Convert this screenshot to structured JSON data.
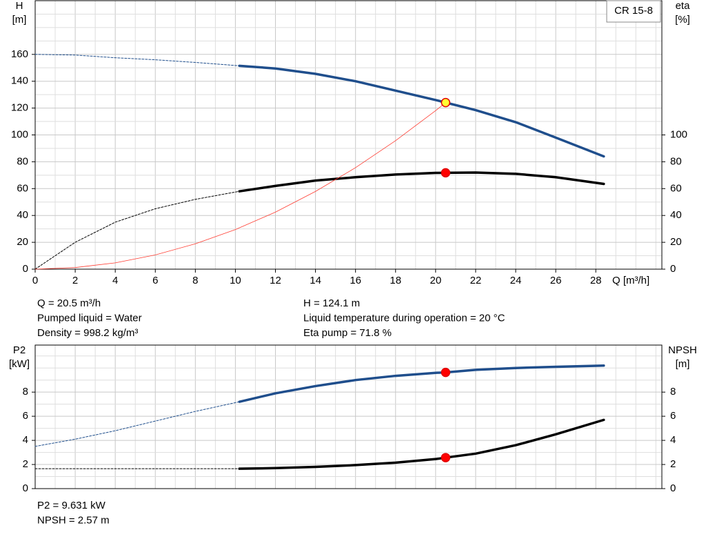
{
  "chart_data": [
    {
      "type": "line",
      "title": "CR 15-8",
      "ylabel": [
        "H",
        "[m]"
      ],
      "y2label": [
        "eta",
        "[%]"
      ],
      "xlabel": "Q [m³/h]",
      "xlim": [
        0,
        31.3
      ],
      "ylim": [
        0,
        200
      ],
      "y2lim": [
        0,
        200
      ],
      "xticks": [
        0,
        2,
        4,
        6,
        8,
        10,
        12,
        14,
        16,
        18,
        20,
        22,
        24,
        26,
        28
      ],
      "yticks": [
        0,
        20,
        40,
        60,
        80,
        100,
        120,
        140,
        160
      ],
      "y2ticks": [
        0,
        20,
        40,
        60,
        80,
        100
      ],
      "grid": true,
      "series": [
        {
          "style": "dashed",
          "color": "#1f4e8c",
          "x": [
            0,
            2,
            4,
            6,
            8,
            10.2
          ],
          "values": [
            160,
            159.5,
            157.5,
            156,
            154,
            151.5
          ]
        },
        {
          "style": "solid",
          "color": "#1f4e8c",
          "x": [
            10.2,
            12,
            14,
            16,
            18,
            20,
            20.5,
            22,
            24,
            26,
            28.4
          ],
          "values": [
            151.5,
            149.5,
            145.5,
            140,
            133,
            126,
            124.1,
            118.5,
            109.5,
            98,
            84
          ]
        },
        {
          "style": "dashed",
          "color": "#000000",
          "axis": "y2",
          "x": [
            0,
            2,
            4,
            6,
            8,
            10.2
          ],
          "values": [
            0,
            20,
            35,
            45,
            52,
            58
          ]
        },
        {
          "style": "solid",
          "color": "#000000",
          "axis": "y2",
          "x": [
            10.2,
            12,
            14,
            16,
            18,
            20,
            20.5,
            22,
            24,
            26,
            28.4
          ],
          "values": [
            58,
            62,
            66,
            68.5,
            70.5,
            71.7,
            71.8,
            72,
            71,
            68.5,
            63.5
          ]
        },
        {
          "style": "thin",
          "color": "#ff3b30",
          "x": [
            0,
            2,
            4,
            6,
            8,
            10,
            12,
            14,
            16,
            18,
            20,
            20.5
          ],
          "values": [
            0,
            1.2,
            4.7,
            10.6,
            18.9,
            29.5,
            42.5,
            57.9,
            75.6,
            95.7,
            118.1,
            124.1
          ]
        },
        {
          "style": "point",
          "color": "#ffff33",
          "edge": "#e00000",
          "x": [
            20.5
          ],
          "values": [
            124.1
          ]
        },
        {
          "style": "point",
          "color": "#ff0000",
          "edge": "#e00000",
          "axis": "y2",
          "x": [
            20.5
          ],
          "values": [
            71.8
          ]
        }
      ],
      "notes_left": [
        "Q = 20.5 m³/h",
        "Pumped liquid = Water",
        "Density = 998.2 kg/m³"
      ],
      "notes_right": [
        "H = 124.1 m",
        "Liquid temperature during operation = 20 °C",
        "Eta pump = 71.8 %"
      ]
    },
    {
      "type": "line",
      "ylabel": [
        "P2",
        "[kW]"
      ],
      "y2label": [
        "NPSH",
        "[m]"
      ],
      "xlim": [
        0,
        31.3
      ],
      "ylim": [
        0,
        11.9
      ],
      "y2lim": [
        0,
        11.9
      ],
      "yticks": [
        0,
        2,
        4,
        6,
        8
      ],
      "y2ticks": [
        0,
        2,
        4,
        6,
        8
      ],
      "grid": true,
      "series": [
        {
          "style": "dashed",
          "color": "#1f4e8c",
          "x": [
            0,
            2,
            4,
            6,
            8,
            10.2
          ],
          "values": [
            3.5,
            4.1,
            4.8,
            5.6,
            6.4,
            7.2
          ]
        },
        {
          "style": "solid",
          "color": "#1f4e8c",
          "x": [
            10.2,
            12,
            14,
            16,
            18,
            20,
            20.5,
            22,
            24,
            26,
            28.4
          ],
          "values": [
            7.2,
            7.9,
            8.5,
            9.0,
            9.35,
            9.6,
            9.631,
            9.85,
            10.0,
            10.1,
            10.2
          ]
        },
        {
          "style": "dashed",
          "color": "#000000",
          "axis": "y2",
          "x": [
            0,
            10.2
          ],
          "values": [
            1.65,
            1.65
          ]
        },
        {
          "style": "solid",
          "color": "#000000",
          "axis": "y2",
          "x": [
            10.2,
            12,
            14,
            16,
            18,
            20,
            20.5,
            22,
            24,
            26,
            28.4
          ],
          "values": [
            1.65,
            1.7,
            1.8,
            1.95,
            2.15,
            2.45,
            2.57,
            2.9,
            3.6,
            4.5,
            5.7
          ]
        },
        {
          "style": "point",
          "color": "#ff0000",
          "edge": "#e00000",
          "x": [
            20.5
          ],
          "values": [
            9.631
          ]
        },
        {
          "style": "point",
          "color": "#ff0000",
          "edge": "#e00000",
          "axis": "y2",
          "x": [
            20.5
          ],
          "values": [
            2.57
          ]
        }
      ],
      "notes_left": [
        "P2 = 9.631 kW",
        "NPSH = 2.57 m"
      ]
    }
  ]
}
